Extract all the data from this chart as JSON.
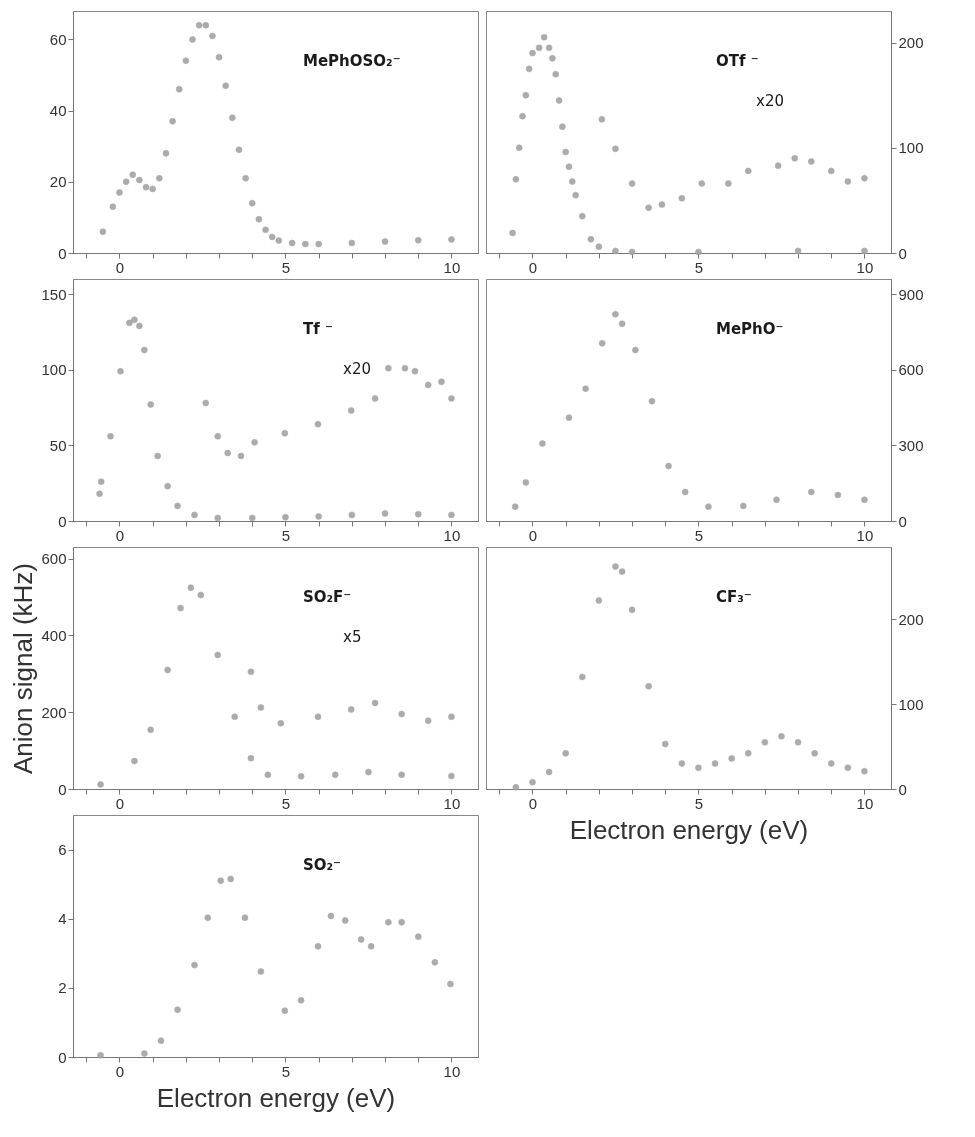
{
  "chart_data": [
    {
      "type": "scatter",
      "marker": "circle",
      "xlim": [
        -1.4,
        10.8
      ],
      "xticks": [
        {
          "value": -1,
          "label": null
        },
        0,
        {
          "value": 1,
          "label": null
        },
        {
          "value": 2,
          "label": null
        },
        {
          "value": 3,
          "label": null
        },
        {
          "value": 4,
          "label": null
        },
        5,
        {
          "value": 6,
          "label": null
        },
        {
          "value": 7,
          "label": null
        },
        {
          "value": 8,
          "label": null
        },
        {
          "value": 9,
          "label": null
        },
        10
      ],
      "ylim": [
        0,
        68
      ],
      "yticks": [
        0,
        20,
        40,
        60
      ],
      "annotations": [
        "MePhOSO₂⁻"
      ],
      "series": [
        {
          "color": "#a3a3a3",
          "x": [
            -0.5,
            -0.2,
            0,
            0.2,
            0.4,
            0.6,
            0.8,
            1.0,
            1.2,
            1.4,
            1.6,
            1.8,
            2.0,
            2.2,
            2.4,
            2.6,
            2.8,
            3.0,
            3.2,
            3.4,
            3.6,
            3.8,
            4.0,
            4.2,
            4.4,
            4.6,
            4.8,
            5.2,
            5.6,
            6,
            7,
            8,
            9,
            10
          ],
          "values": [
            6,
            13,
            17,
            20,
            22,
            20.5,
            18.5,
            18,
            21,
            28,
            37,
            46,
            54,
            60,
            64,
            64,
            61,
            55,
            47,
            38,
            29,
            21,
            14,
            9.5,
            6.5,
            4.5,
            3.5,
            2.8,
            2.5,
            2.5,
            2.8,
            3.2,
            3.6,
            3.8
          ]
        }
      ]
    },
    {
      "type": "scatter",
      "marker": "circle",
      "xlim": [
        -1.4,
        10.8
      ],
      "xticks": [
        {
          "value": -1,
          "label": null
        },
        0,
        {
          "value": 1,
          "label": null
        },
        {
          "value": 2,
          "label": null
        },
        {
          "value": 3,
          "label": null
        },
        {
          "value": 4,
          "label": null
        },
        5,
        {
          "value": 6,
          "label": null
        },
        {
          "value": 7,
          "label": null
        },
        {
          "value": 8,
          "label": null
        },
        {
          "value": 9,
          "label": null
        },
        10
      ],
      "y2lim": [
        0,
        230
      ],
      "y2ticks": [
        0,
        100,
        200
      ],
      "annotations": [
        "OTf ⁻",
        "x20"
      ],
      "series": [
        {
          "axis": "y2",
          "color": "#a3a3a3",
          "x": [
            -0.6,
            -0.5,
            -0.4,
            -0.3,
            -0.2,
            -0.1,
            0,
            0.2,
            0.35,
            0.5,
            0.6,
            0.7,
            0.8,
            0.9,
            1.0,
            1.1,
            1.2,
            1.3,
            1.5,
            1.76,
            2.0,
            2.5,
            3,
            5,
            8,
            10
          ],
          "values": [
            19,
            70,
            100,
            130,
            150,
            175,
            190,
            195,
            205,
            195,
            185,
            170,
            145,
            120,
            96,
            82,
            68,
            55,
            35,
            13,
            6,
            2,
            1,
            1,
            2,
            2
          ]
        },
        {
          "axis": "y2",
          "color": "#a3a3a3",
          "x": [
            2.09,
            2.5,
            3.0,
            3.5,
            3.9,
            4.5,
            5.1,
            5.9,
            6.5,
            7.4,
            7.9,
            8.4,
            9.0,
            9.5,
            10
          ],
          "values": [
            127,
            99,
            66,
            43,
            46,
            52,
            66,
            66,
            78,
            83,
            90,
            87,
            78,
            68,
            71
          ]
        }
      ]
    },
    {
      "type": "scatter",
      "marker": "circle",
      "xlim": [
        -1.4,
        10.8
      ],
      "xticks": [
        {
          "value": -1,
          "label": null
        },
        0,
        {
          "value": 1,
          "label": null
        },
        {
          "value": 2,
          "label": null
        },
        {
          "value": 3,
          "label": null
        },
        {
          "value": 4,
          "label": null
        },
        5,
        {
          "value": 6,
          "label": null
        },
        {
          "value": 7,
          "label": null
        },
        {
          "value": 8,
          "label": null
        },
        {
          "value": 9,
          "label": null
        },
        10
      ],
      "ylim": [
        0,
        160
      ],
      "yticks": [
        0,
        50,
        100,
        150
      ],
      "annotations": [
        "Tf ⁻",
        "x20"
      ],
      "series": [
        {
          "color": "#a3a3a3",
          "x": [
            -0.6,
            -0.55,
            -0.27,
            0.03,
            0.3,
            0.45,
            0.6,
            0.75,
            0.94,
            1.15,
            1.45,
            1.75,
            2.26,
            2.96,
            4,
            5,
            6,
            7,
            8,
            9,
            10
          ],
          "values": [
            18,
            26,
            56,
            99,
            131,
            133,
            129,
            113,
            77,
            43,
            23,
            10,
            4,
            2,
            2,
            2.5,
            3,
            4,
            5,
            4.5,
            4
          ]
        },
        {
          "color": "#a3a3a3",
          "x": [
            2.6,
            2.96,
            3.26,
            3.66,
            4.07,
            4.98,
            5.98,
            6.98,
            7.7,
            8.1,
            8.6,
            8.9,
            9.3,
            9.7,
            10
          ],
          "values": [
            78,
            56,
            45,
            43,
            52,
            58,
            64,
            73,
            81,
            101,
            101,
            99,
            90,
            92,
            81
          ]
        }
      ]
    },
    {
      "type": "scatter",
      "marker": "circle",
      "xlim": [
        -1.4,
        10.8
      ],
      "xticks": [
        {
          "value": -1,
          "label": null
        },
        0,
        {
          "value": 1,
          "label": null
        },
        {
          "value": 2,
          "label": null
        },
        {
          "value": 3,
          "label": null
        },
        {
          "value": 4,
          "label": null
        },
        5,
        {
          "value": 6,
          "label": null
        },
        {
          "value": 7,
          "label": null
        },
        {
          "value": 8,
          "label": null
        },
        {
          "value": 9,
          "label": null
        },
        10
      ],
      "y2lim": [
        0,
        960
      ],
      "y2ticks": [
        0,
        300,
        600,
        900
      ],
      "annotations": [
        "MePhO⁻"
      ],
      "series": [
        {
          "axis": "y2",
          "color": "#a3a3a3",
          "x": [
            -0.52,
            -0.2,
            0.3,
            1.1,
            1.6,
            2.1,
            2.5,
            2.7,
            3.1,
            3.6,
            4.1,
            4.6,
            5.3,
            6.35,
            7.35,
            8.4,
            9.2,
            10
          ],
          "values": [
            57,
            153,
            307,
            410,
            525,
            705,
            820,
            782,
            678,
            475,
            218,
            115,
            57,
            60,
            84,
            115,
            103,
            84
          ]
        }
      ]
    },
    {
      "type": "scatter",
      "marker": "circle",
      "xlim": [
        -1.4,
        10.8
      ],
      "xticks": [
        {
          "value": -1,
          "label": null
        },
        0,
        {
          "value": 1,
          "label": null
        },
        {
          "value": 2,
          "label": null
        },
        {
          "value": 3,
          "label": null
        },
        {
          "value": 4,
          "label": null
        },
        5,
        {
          "value": 6,
          "label": null
        },
        {
          "value": 7,
          "label": null
        },
        {
          "value": 8,
          "label": null
        },
        {
          "value": 9,
          "label": null
        },
        10
      ],
      "ylim": [
        0,
        630
      ],
      "yticks": [
        0,
        200,
        400,
        600
      ],
      "ylabel": "Anion signal (kHz)",
      "annotations": [
        "SO₂F⁻",
        "x5"
      ],
      "series": [
        {
          "color": "#a3a3a3",
          "x": [
            -0.57,
            0.45,
            0.94,
            1.45,
            1.84,
            2.15,
            2.45,
            2.96,
            3.47,
            3.96,
            4.47,
            5.47,
            6.5,
            7.5,
            8.5,
            10
          ],
          "values": [
            12,
            73,
            154,
            310,
            471,
            524,
            505,
            349,
            188,
            80,
            37,
            33,
            37,
            44,
            37,
            34
          ]
        },
        {
          "color": "#a3a3a3",
          "x": [
            3.96,
            4.26,
            4.86,
            5.98,
            6.98,
            7.7,
            8.5,
            9.3,
            10
          ],
          "values": [
            305,
            212,
            171,
            188,
            207,
            224,
            195,
            178,
            188
          ]
        }
      ]
    },
    {
      "type": "scatter",
      "marker": "circle",
      "xlim": [
        -1.4,
        10.8
      ],
      "xticks": [
        {
          "value": -1,
          "label": null
        },
        0,
        {
          "value": 1,
          "label": null
        },
        {
          "value": 2,
          "label": null
        },
        {
          "value": 3,
          "label": null
        },
        {
          "value": 4,
          "label": null
        },
        5,
        {
          "value": 6,
          "label": null
        },
        {
          "value": 7,
          "label": null
        },
        {
          "value": 8,
          "label": null
        },
        {
          "value": 9,
          "label": null
        },
        10
      ],
      "y2lim": [
        0,
        285
      ],
      "y2ticks": [
        0,
        100,
        200
      ],
      "xlabel": "Electron energy (eV)",
      "annotations": [
        "CF₃⁻"
      ],
      "series": [
        {
          "axis": "y2",
          "color": "#a3a3a3",
          "x": [
            -0.5,
            0,
            0.5,
            1.0,
            1.5,
            2.0,
            2.5,
            2.7,
            3.0,
            3.5,
            4.0,
            4.5,
            5.0,
            5.5,
            6,
            6.5,
            7,
            7.5,
            8,
            8.5,
            9,
            9.5,
            10
          ],
          "values": [
            2,
            8,
            20,
            42,
            132,
            222,
            262,
            256,
            211,
            121,
            53,
            30,
            25,
            30,
            36,
            42,
            55,
            62,
            55,
            42,
            30,
            25,
            21
          ]
        }
      ]
    },
    {
      "type": "scatter",
      "marker": "circle",
      "xlim": [
        -1.4,
        10.8
      ],
      "xticks": [
        {
          "value": -1,
          "label": null
        },
        0,
        {
          "value": 1,
          "label": null
        },
        {
          "value": 2,
          "label": null
        },
        {
          "value": 3,
          "label": null
        },
        {
          "value": 4,
          "label": null
        },
        5,
        {
          "value": 6,
          "label": null
        },
        {
          "value": 7,
          "label": null
        },
        {
          "value": 8,
          "label": null
        },
        {
          "value": 9,
          "label": null
        },
        10
      ],
      "ylim": [
        0,
        7
      ],
      "yticks": [
        0,
        2,
        4,
        6
      ],
      "xlabel": "Electron energy (eV)",
      "annotations": [
        "SO₂⁻"
      ],
      "series": [
        {
          "color": "#a3a3a3",
          "x": [
            -0.57,
            0.75,
            1.25,
            1.75,
            2.26,
            2.66,
            3.05,
            3.35,
            3.78,
            4.26,
            4.98,
            5.47,
            5.98,
            6.37,
            6.8,
            7.28,
            7.58,
            8.1,
            8.5,
            9.0,
            9.5,
            9.97
          ],
          "values": [
            0.05,
            0.1,
            0.47,
            1.37,
            2.66,
            4.03,
            5.1,
            5.15,
            4.03,
            2.47,
            1.34,
            1.64,
            3.2,
            4.08,
            3.95,
            3.4,
            3.2,
            3.9,
            3.9,
            3.48,
            2.74,
            2.11
          ]
        }
      ]
    }
  ]
}
